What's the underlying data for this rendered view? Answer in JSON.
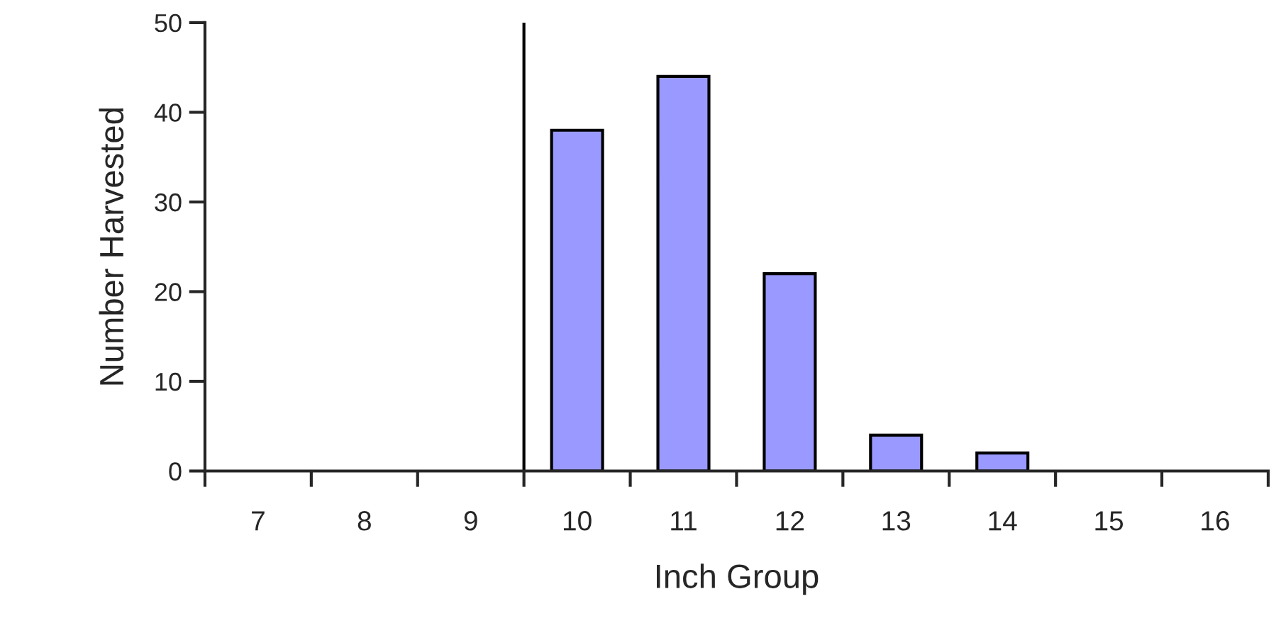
{
  "chart_data": {
    "type": "bar",
    "xlabel": "Inch Group",
    "ylabel": "Number Harvested",
    "categories": [
      "7",
      "8",
      "9",
      "10",
      "11",
      "12",
      "13",
      "14",
      "15",
      "16"
    ],
    "values": [
      0,
      0,
      0,
      38,
      44,
      22,
      4,
      2,
      0,
      0
    ],
    "color": "#9999ff",
    "ylim": [
      0,
      50
    ],
    "yticks": [
      0,
      10,
      20,
      30,
      40,
      50
    ],
    "grid": false,
    "legend": false
  }
}
